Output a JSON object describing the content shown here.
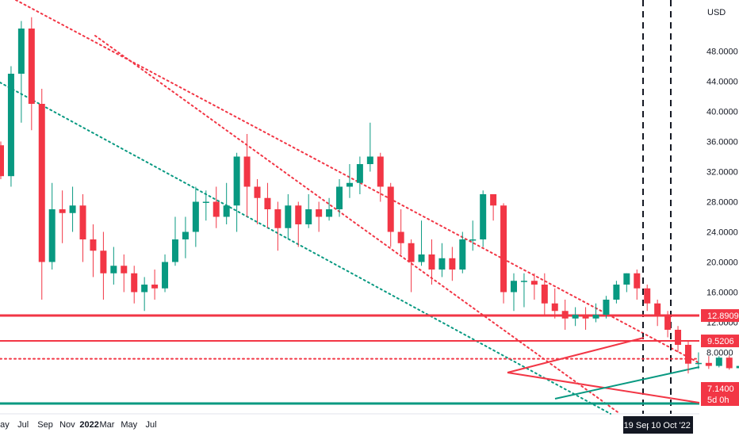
{
  "chart_data": {
    "type": "candlestick",
    "currency": "USD",
    "y_ticks": [
      "48.0000",
      "44.0000",
      "40.0000",
      "36.0000",
      "32.0000",
      "28.0000",
      "24.0000",
      "20.0000",
      "16.0000",
      "12.0000",
      "8.0000"
    ],
    "y_tick_values": [
      48,
      44,
      40,
      36,
      32,
      28,
      24,
      20,
      16,
      12,
      8
    ],
    "x_labels": [
      {
        "t": 16.1,
        "label": "May",
        "bold": false
      },
      {
        "t": 16.6,
        "label": "Jul",
        "bold": false
      },
      {
        "t": 17.1,
        "label": "Sep",
        "bold": false
      },
      {
        "t": 17.6,
        "label": "Nov",
        "bold": false
      },
      {
        "t": 18.1,
        "label": "2022",
        "bold": true
      },
      {
        "t": 18.5,
        "label": "Mar",
        "bold": false
      },
      {
        "t": 19.0,
        "label": "May",
        "bold": false
      },
      {
        "t": 19.5,
        "label": "Jul",
        "bold": false
      }
    ],
    "date_markers": [
      {
        "t": 24.9,
        "label": "19 Sep"
      },
      {
        "t": 25.8,
        "label": "10 Oct '22"
      }
    ],
    "price_tags": [
      {
        "value": 12.8909,
        "label": "12.8909",
        "color": "#f23645",
        "line": "solid"
      },
      {
        "value": 9.5206,
        "label": "9.5206",
        "color": "#f23645",
        "line": "solid"
      },
      {
        "value": 7.14,
        "label": "7.1400",
        "color": "#f23645",
        "line": "dotted"
      },
      {
        "value": 5.2,
        "label": "5d 0h",
        "color": "#f23645",
        "line": "none"
      }
    ],
    "support_level": 5.2,
    "candles": [
      [
        0,
        35.5,
        31.4,
        36.0,
        31.0
      ],
      [
        1,
        31.4,
        45.0,
        46.0,
        30.0
      ],
      [
        2,
        45.0,
        51.0,
        52.0,
        38.5
      ],
      [
        3,
        51.0,
        41.0,
        52.5,
        37.5
      ],
      [
        4,
        41.0,
        20.0,
        43.0,
        15.0
      ],
      [
        5,
        20.0,
        27.0,
        30.5,
        19.0
      ],
      [
        6,
        27.0,
        26.5,
        29.5,
        22.5
      ],
      [
        7,
        26.5,
        27.5,
        30.0,
        24.0
      ],
      [
        8,
        27.5,
        23.0,
        29.0,
        20.0
      ],
      [
        9,
        23.0,
        21.5,
        25.0,
        18.0
      ],
      [
        10,
        21.5,
        18.5,
        24.0,
        15.0
      ],
      [
        11,
        18.5,
        19.5,
        22.0,
        17.0
      ],
      [
        12,
        19.5,
        18.5,
        21.0,
        16.0
      ],
      [
        13,
        18.5,
        16.0,
        19.5,
        14.5
      ],
      [
        14,
        16.0,
        17.0,
        18.0,
        13.5
      ],
      [
        15,
        17.0,
        16.5,
        19.0,
        15.0
      ],
      [
        16,
        16.5,
        20.0,
        21.0,
        16.0
      ],
      [
        17,
        20.0,
        23.0,
        26.0,
        19.5
      ],
      [
        18,
        23.0,
        24.0,
        26.0,
        20.5
      ],
      [
        19,
        24.0,
        28.0,
        30.0,
        22.0
      ],
      [
        20,
        28.0,
        28.0,
        29.5,
        25.5
      ],
      [
        21,
        28.0,
        26.0,
        30.0,
        24.5
      ],
      [
        22,
        26.0,
        27.5,
        30.5,
        25.0
      ],
      [
        23,
        27.5,
        34.0,
        34.5,
        24.0
      ],
      [
        24,
        34.0,
        30.0,
        37.0,
        26.0
      ],
      [
        25,
        30.0,
        28.5,
        31.0,
        25.0
      ],
      [
        26,
        28.5,
        27.0,
        30.5,
        24.5
      ],
      [
        27,
        27.0,
        24.5,
        28.0,
        21.5
      ],
      [
        28,
        24.5,
        27.5,
        29.0,
        23.0
      ],
      [
        29,
        27.5,
        25.0,
        28.0,
        22.0
      ],
      [
        30,
        25.0,
        27.0,
        29.0,
        24.5
      ],
      [
        31,
        27.0,
        26.0,
        28.0,
        24.0
      ],
      [
        32,
        26.0,
        27.0,
        28.5,
        25.5
      ],
      [
        33,
        27.0,
        30.0,
        31.0,
        26.0
      ],
      [
        34,
        30.0,
        30.5,
        33.0,
        28.5
      ],
      [
        35,
        30.5,
        33.0,
        34.0,
        29.0
      ],
      [
        36,
        33.0,
        34.0,
        38.5,
        32.0
      ],
      [
        37,
        34.0,
        30.0,
        34.5,
        28.0
      ],
      [
        38,
        30.0,
        24.0,
        30.5,
        22.0
      ],
      [
        39,
        24.0,
        22.5,
        27.0,
        21.0
      ],
      [
        40,
        22.5,
        20.0,
        23.0,
        16.0
      ],
      [
        41,
        20.0,
        21.0,
        25.5,
        19.5
      ],
      [
        42,
        21.0,
        19.0,
        23.0,
        17.0
      ],
      [
        43,
        19.0,
        20.5,
        22.5,
        18.0
      ],
      [
        44,
        20.5,
        19.0,
        22.0,
        17.5
      ],
      [
        45,
        19.0,
        23.0,
        24.0,
        18.5
      ],
      [
        46,
        23.0,
        23.0,
        25.5,
        21.5
      ],
      [
        47,
        23.0,
        29.0,
        29.5,
        22.0
      ],
      [
        48,
        29.0,
        27.5,
        29.0,
        25.5
      ],
      [
        49,
        27.5,
        16.0,
        27.8,
        14.5
      ],
      [
        50,
        16.0,
        17.5,
        18.5,
        13.5
      ],
      [
        51,
        17.5,
        17.5,
        18.5,
        14.0
      ],
      [
        52,
        17.5,
        17.0,
        18.5,
        15.0
      ],
      [
        53,
        17.0,
        14.5,
        18.5,
        13.0
      ],
      [
        54,
        14.5,
        13.5,
        16.5,
        12.5
      ],
      [
        55,
        13.5,
        12.5,
        15.0,
        11.0
      ],
      [
        56,
        12.5,
        13.0,
        14.0,
        11.5
      ],
      [
        57,
        13.0,
        12.5,
        14.0,
        11.0
      ],
      [
        58,
        12.5,
        13.0,
        14.5,
        12.0
      ],
      [
        59,
        13.0,
        15.0,
        15.5,
        12.5
      ],
      [
        60,
        15.0,
        17.0,
        17.5,
        14.5
      ],
      [
        61,
        17.0,
        18.5,
        18.5,
        16.0
      ],
      [
        62,
        18.5,
        16.5,
        19.0,
        15.0
      ],
      [
        63,
        16.5,
        14.5,
        17.0,
        13.5
      ],
      [
        64,
        14.5,
        13.0,
        15.0,
        11.5
      ],
      [
        65,
        13.0,
        11.0,
        13.5,
        10.0
      ],
      [
        66,
        11.0,
        9.0,
        11.5,
        8.0
      ],
      [
        67,
        9.0,
        6.5,
        9.5,
        5.2
      ],
      [
        68,
        6.5,
        6.6,
        8.0,
        5.8
      ],
      [
        69,
        6.6,
        6.2,
        7.5,
        5.8
      ],
      [
        70,
        6.2,
        7.3,
        7.5,
        6.0
      ],
      [
        71,
        7.3,
        5.9,
        7.6,
        5.7
      ],
      [
        72,
        5.9,
        6.2,
        6.8,
        5.4
      ],
      [
        73,
        6.2,
        6.4,
        7.0,
        5.8
      ],
      [
        74,
        6.4,
        6.1,
        6.9,
        5.5
      ],
      [
        75,
        6.1,
        6.2,
        6.8,
        5.9
      ],
      [
        76,
        6.2,
        6.0,
        7.0,
        5.7
      ],
      [
        77,
        6.0,
        6.8,
        7.2,
        5.8
      ],
      [
        78,
        6.8,
        7.6,
        8.0,
        6.6
      ],
      [
        79,
        7.6,
        7.3,
        8.0,
        7.0
      ],
      [
        80,
        7.3,
        7.0,
        7.8,
        6.8
      ]
    ]
  }
}
